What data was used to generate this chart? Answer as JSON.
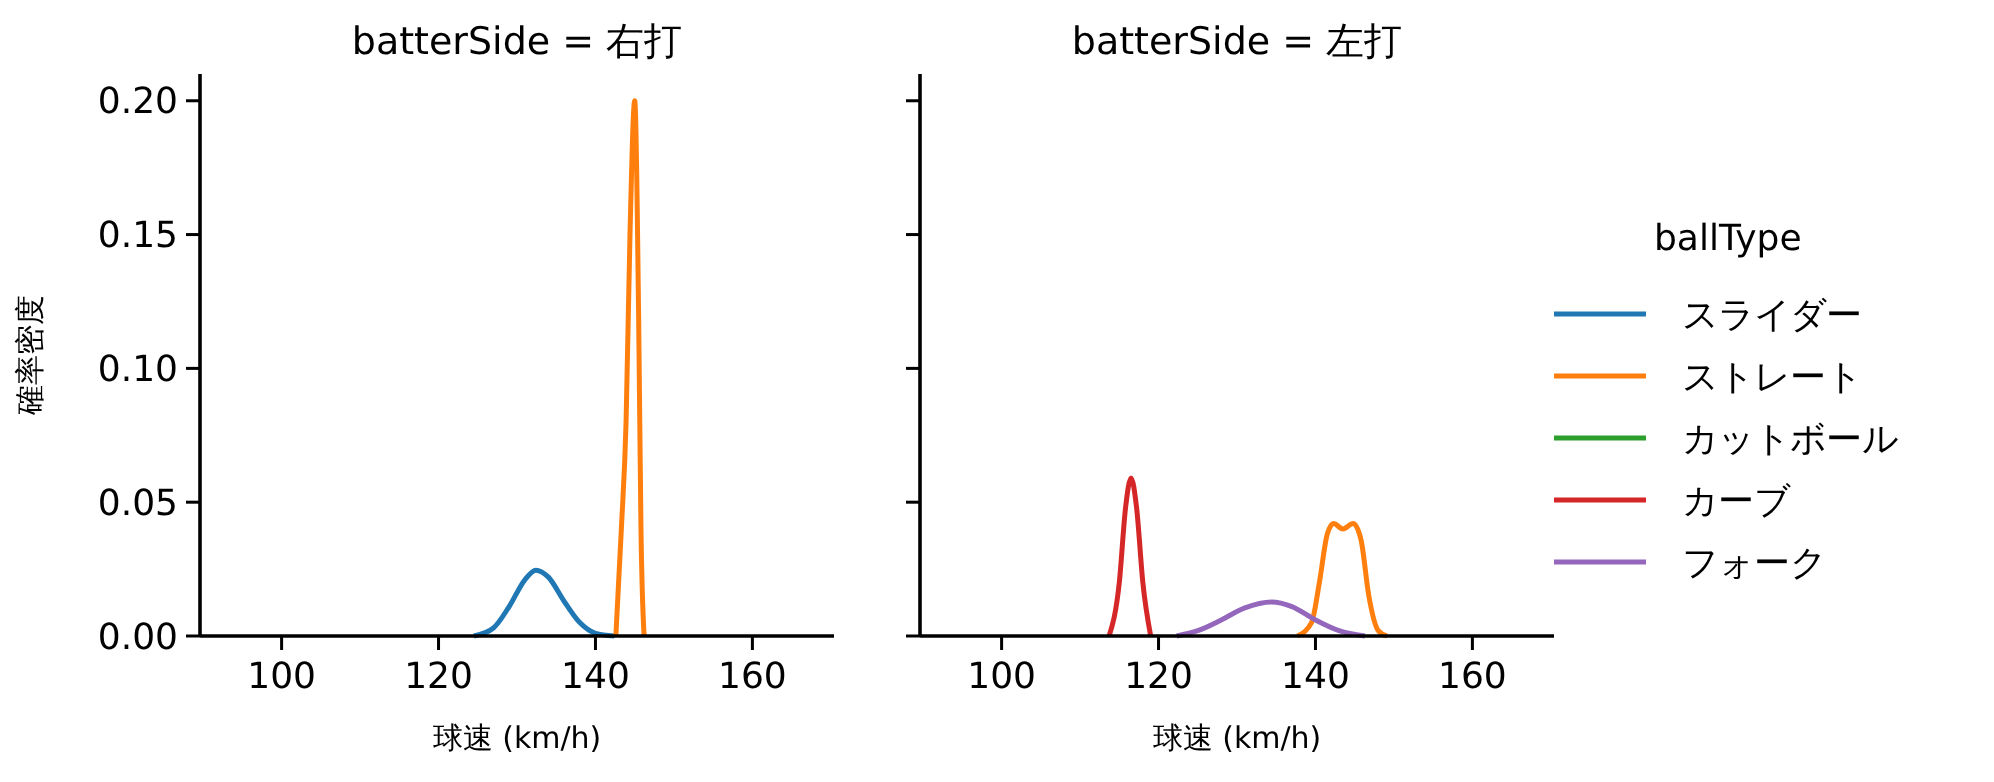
{
  "chart_data": [
    {
      "type": "line",
      "title": "batterSide = 右打",
      "xlabel": "球速 (km/h)",
      "ylabel": "確率密度",
      "xlim": [
        89.6,
        170.4
      ],
      "ylim": [
        0,
        0.21
      ],
      "xticks": [
        100,
        120,
        140,
        160
      ],
      "yticks": [
        {
          "value": 0,
          "label": "0.00"
        },
        {
          "value": 0.05,
          "label": "0.05"
        },
        {
          "value": 0.1,
          "label": "0.10"
        },
        {
          "value": 0.15,
          "label": "0.15"
        },
        {
          "value": 0.2,
          "label": "0.20"
        }
      ],
      "grid": false,
      "legend": false,
      "series": [
        {
          "color": "#1f77b4",
          "x": [
            124.5,
            127,
            129,
            131,
            132.4,
            134,
            136,
            138,
            140,
            142.4
          ],
          "values": [
            0,
            0.003,
            0.011,
            0.021,
            0.0246,
            0.022,
            0.013,
            0.005,
            0.001,
            0
          ]
        },
        {
          "color": "#ff7f0e",
          "x": [
            142.6,
            143.3,
            143.9,
            144.4,
            145,
            145.5,
            145.8,
            146.2
          ],
          "values": [
            0,
            0.04,
            0.08,
            0.15,
            0.2,
            0.12,
            0.04,
            0
          ]
        }
      ]
    },
    {
      "type": "line",
      "title": "batterSide = 左打",
      "xlabel": "球速 (km/h)",
      "xlim": [
        89.6,
        170.4
      ],
      "ylim": [
        0,
        0.21
      ],
      "xticks": [
        100,
        120,
        140,
        160
      ],
      "yticks": [
        {
          "value": 0,
          "label": null
        },
        {
          "value": 0.05,
          "label": null
        },
        {
          "value": 0.1,
          "label": null
        },
        {
          "value": 0.15,
          "label": null
        },
        {
          "value": 0.2,
          "label": null
        }
      ],
      "tick_labels": "x",
      "grid": false,
      "legend": "right",
      "legend_title": "ballType",
      "series": [
        {
          "name": "スライダー",
          "color": "#1f77b4"
        },
        {
          "name": "ストレート",
          "color": "#ff7f0e",
          "x": [
            137.7,
            139.5,
            140.5,
            141.5,
            142.3,
            143.5,
            144.8,
            145.8,
            146.8,
            148,
            149.1
          ],
          "values": [
            0,
            0.005,
            0.02,
            0.038,
            0.042,
            0.04,
            0.042,
            0.036,
            0.015,
            0.002,
            0
          ]
        },
        {
          "name": "カットボール",
          "color": "#2ca02c"
        },
        {
          "name": "カーブ",
          "color": "#d62728",
          "x": [
            113.7,
            115,
            115.8,
            116.5,
            117.2,
            118,
            119
          ],
          "values": [
            0,
            0.02,
            0.048,
            0.059,
            0.048,
            0.02,
            0
          ]
        },
        {
          "name": "フォーク",
          "color": "#9467bd",
          "x": [
            122.3,
            125,
            128,
            131,
            134.4,
            137,
            140,
            143,
            146.3
          ],
          "values": [
            0,
            0.002,
            0.006,
            0.0105,
            0.0127,
            0.011,
            0.006,
            0.002,
            0
          ]
        }
      ]
    }
  ]
}
